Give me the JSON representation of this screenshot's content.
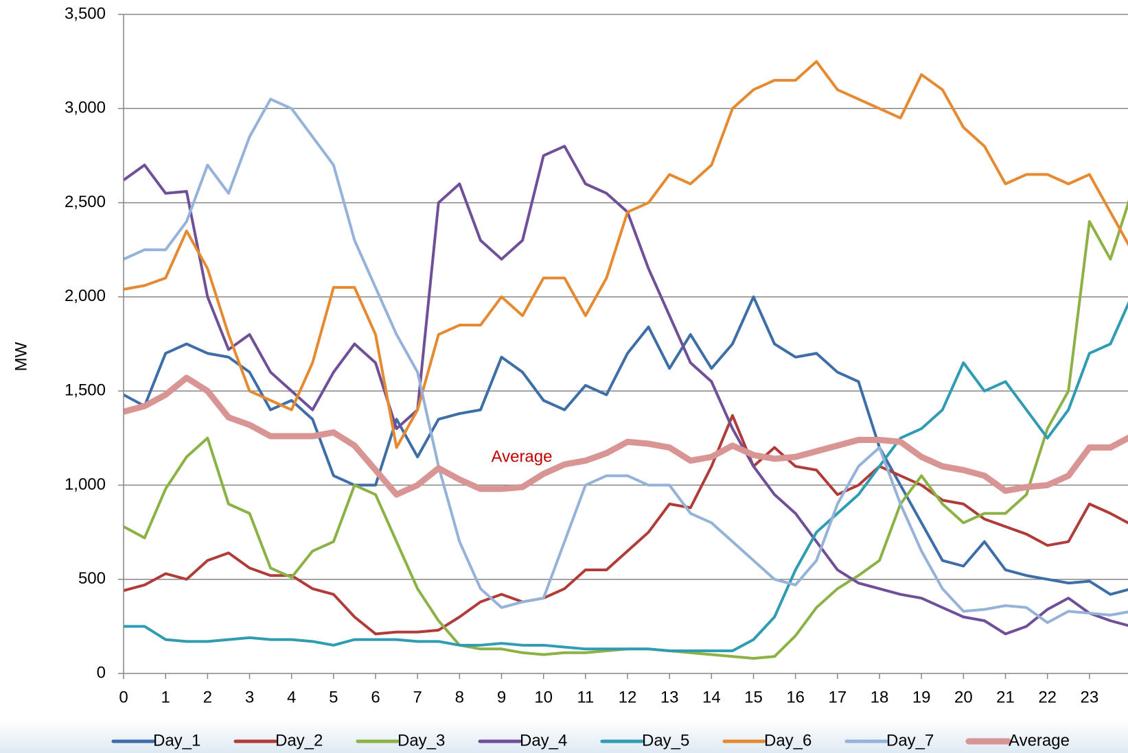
{
  "chart_data": {
    "type": "line",
    "ylabel": "MW",
    "annotation": "Average",
    "x": [
      0,
      0.5,
      1,
      1.5,
      2,
      2.5,
      3,
      3.5,
      4,
      4.5,
      5,
      5.5,
      6,
      6.5,
      7,
      7.5,
      8,
      8.5,
      9,
      9.5,
      10,
      10.5,
      11,
      11.5,
      12,
      12.5,
      13,
      13.5,
      14,
      14.5,
      15,
      15.5,
      16,
      16.5,
      17,
      17.5,
      18,
      18.5,
      19,
      19.5,
      20,
      20.5,
      21,
      21.5,
      22,
      22.5,
      23,
      23.5,
      24
    ],
    "xlim": [
      0,
      24
    ],
    "xticks": [
      0,
      1,
      2,
      3,
      4,
      5,
      6,
      7,
      8,
      9,
      10,
      11,
      12,
      13,
      14,
      15,
      16,
      17,
      18,
      19,
      20,
      21,
      22,
      23
    ],
    "ylim": [
      0,
      3500
    ],
    "yticks": [
      0,
      500,
      {
        "value": 1000,
        "label": "1,000"
      },
      {
        "value": 1500,
        "label": "1,500"
      },
      {
        "value": 2000,
        "label": "2,000"
      },
      {
        "value": 2500,
        "label": "2,500"
      },
      {
        "value": 3000,
        "label": "3,000"
      },
      {
        "value": 3500,
        "label": "3,500"
      }
    ],
    "grid": true,
    "legend": "bottom",
    "series": [
      {
        "name": "Day_1",
        "color": "#3d6ea8",
        "values": [
          1480,
          1420,
          1700,
          1750,
          1700,
          1680,
          1600,
          1400,
          1450,
          1350,
          1050,
          1000,
          1000,
          1350,
          1150,
          1350,
          1380,
          1400,
          1680,
          1600,
          1450,
          1400,
          1530,
          1480,
          1700,
          1840,
          1620,
          1800,
          1620,
          1750,
          2000,
          1750,
          1680,
          1700,
          1600,
          1550,
          1200,
          1000,
          800,
          600,
          570,
          700,
          550,
          520,
          500,
          480,
          490,
          420,
          450
        ]
      },
      {
        "name": "Day_2",
        "color": "#b03c3a",
        "values": [
          440,
          470,
          530,
          500,
          600,
          640,
          560,
          520,
          520,
          450,
          420,
          300,
          210,
          220,
          220,
          230,
          300,
          380,
          420,
          380,
          400,
          450,
          550,
          550,
          650,
          750,
          900,
          880,
          1100,
          1370,
          1100,
          1200,
          1100,
          1080,
          950,
          1000,
          1100,
          1050,
          1000,
          920,
          900,
          820,
          780,
          740,
          680,
          700,
          900,
          850,
          790
        ]
      },
      {
        "name": "Day_3",
        "color": "#8cb145",
        "values": [
          780,
          720,
          980,
          1150,
          1250,
          900,
          850,
          560,
          510,
          650,
          700,
          1000,
          950,
          700,
          450,
          280,
          150,
          130,
          130,
          110,
          100,
          110,
          110,
          120,
          130,
          130,
          120,
          110,
          100,
          90,
          80,
          90,
          200,
          350,
          450,
          520,
          600,
          900,
          1050,
          900,
          800,
          850,
          850,
          950,
          1300,
          1500,
          2400,
          2200,
          2550
        ]
      },
      {
        "name": "Day_4",
        "color": "#6f4f97",
        "values": [
          2620,
          2700,
          2550,
          2560,
          2000,
          1720,
          1800,
          1600,
          1500,
          1400,
          1600,
          1750,
          1650,
          1300,
          1400,
          2500,
          2600,
          2300,
          2200,
          2300,
          2750,
          2800,
          2600,
          2550,
          2450,
          2150,
          1900,
          1650,
          1550,
          1300,
          1100,
          950,
          850,
          700,
          550,
          480,
          450,
          420,
          400,
          350,
          300,
          280,
          210,
          250,
          340,
          400,
          320,
          280,
          250
        ]
      },
      {
        "name": "Day_5",
        "color": "#2f9cb4",
        "values": [
          250,
          250,
          180,
          170,
          170,
          180,
          190,
          180,
          180,
          170,
          150,
          180,
          180,
          180,
          170,
          170,
          150,
          150,
          160,
          150,
          150,
          140,
          130,
          130,
          130,
          130,
          120,
          120,
          120,
          120,
          180,
          300,
          550,
          750,
          850,
          950,
          1100,
          1250,
          1300,
          1400,
          1650,
          1500,
          1550,
          1400,
          1250,
          1400,
          1700,
          1750,
          2000
        ]
      },
      {
        "name": "Day_6",
        "color": "#e58a30",
        "values": [
          2040,
          2060,
          2100,
          2350,
          2150,
          1800,
          1500,
          1450,
          1400,
          1650,
          2050,
          2050,
          1800,
          1200,
          1400,
          1800,
          1850,
          1850,
          2000,
          1900,
          2100,
          2100,
          1900,
          2100,
          2450,
          2500,
          2650,
          2600,
          2700,
          3000,
          3100,
          3150,
          3150,
          3250,
          3100,
          3050,
          3000,
          2950,
          3180,
          3100,
          2900,
          2800,
          2600,
          2650,
          2650,
          2600,
          2650,
          2450,
          2250
        ]
      },
      {
        "name": "Day_7",
        "color": "#95b2d8",
        "values": [
          2200,
          2250,
          2250,
          2400,
          2700,
          2550,
          2850,
          3050,
          3000,
          2850,
          2700,
          2300,
          2050,
          1800,
          1600,
          1100,
          700,
          450,
          350,
          380,
          400,
          700,
          1000,
          1050,
          1050,
          1000,
          1000,
          850,
          800,
          700,
          600,
          500,
          470,
          600,
          900,
          1100,
          1200,
          900,
          650,
          450,
          330,
          340,
          360,
          350,
          270,
          330,
          320,
          310,
          330
        ]
      },
      {
        "name": "Average",
        "color": "#d99594",
        "width": 9,
        "values": [
          1390,
          1420,
          1480,
          1570,
          1500,
          1360,
          1320,
          1260,
          1260,
          1260,
          1280,
          1210,
          1080,
          950,
          1000,
          1090,
          1030,
          980,
          980,
          990,
          1060,
          1110,
          1130,
          1170,
          1230,
          1220,
          1200,
          1130,
          1150,
          1210,
          1160,
          1140,
          1150,
          1180,
          1210,
          1240,
          1240,
          1230,
          1150,
          1100,
          1080,
          1050,
          970,
          990,
          1000,
          1050,
          1200,
          1200,
          1260
        ]
      }
    ]
  }
}
